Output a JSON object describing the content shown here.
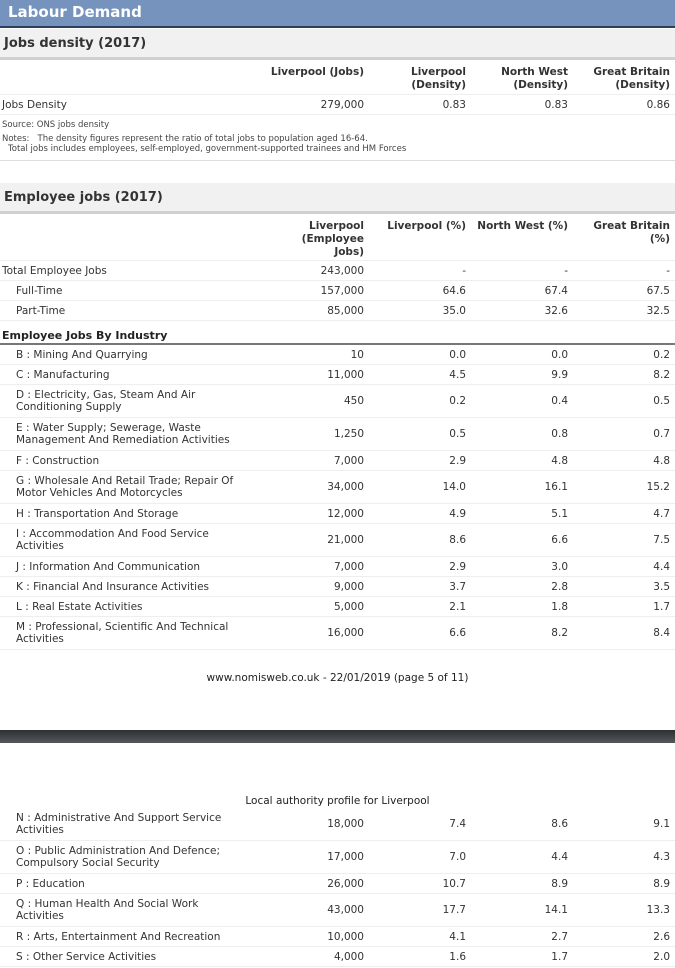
{
  "title": "Labour Demand",
  "density": {
    "heading": "Jobs density (2017)",
    "columns": [
      "Liverpool (Jobs)",
      "Liverpool (Density)",
      "North West (Density)",
      "Great Britain (Density)"
    ],
    "row": {
      "label": "Jobs Density",
      "values": [
        "279,000",
        "0.83",
        "0.83",
        "0.86"
      ]
    },
    "source": "Source: ONS jobs density",
    "notes": "Notes:   The density figures represent the ratio of total jobs to population aged 16-64.",
    "notes2": "Total jobs includes employees, self-employed, government-supported trainees and HM Forces"
  },
  "employee": {
    "heading": "Employee jobs (2017)",
    "columns": [
      "Liverpool (Employee Jobs)",
      "Liverpool (%)",
      "North West (%)",
      "Great Britain (%)"
    ],
    "summary": [
      {
        "label": "Total Employee Jobs",
        "values": [
          "243,000",
          "-",
          "-",
          "-"
        ],
        "indent": false
      },
      {
        "label": "Full-Time",
        "values": [
          "157,000",
          "64.6",
          "67.4",
          "67.5"
        ],
        "indent": true
      },
      {
        "label": "Part-Time",
        "values": [
          "85,000",
          "35.0",
          "32.6",
          "32.5"
        ],
        "indent": true
      }
    ],
    "category": "Employee Jobs By Industry",
    "industries": [
      {
        "label": "B : Mining And Quarrying",
        "values": [
          "10",
          "0.0",
          "0.0",
          "0.2"
        ]
      },
      {
        "label": "C : Manufacturing",
        "values": [
          "11,000",
          "4.5",
          "9.9",
          "8.2"
        ]
      },
      {
        "label": "D : Electricity, Gas, Steam And Air Conditioning Supply",
        "values": [
          "450",
          "0.2",
          "0.4",
          "0.5"
        ]
      },
      {
        "label": "E : Water Supply; Sewerage, Waste Management And Remediation Activities",
        "values": [
          "1,250",
          "0.5",
          "0.8",
          "0.7"
        ]
      },
      {
        "label": "F : Construction",
        "values": [
          "7,000",
          "2.9",
          "4.8",
          "4.8"
        ]
      },
      {
        "label": "G : Wholesale And Retail Trade; Repair Of Motor Vehicles And Motorcycles",
        "values": [
          "34,000",
          "14.0",
          "16.1",
          "15.2"
        ]
      },
      {
        "label": "H : Transportation And Storage",
        "values": [
          "12,000",
          "4.9",
          "5.1",
          "4.7"
        ]
      },
      {
        "label": "I : Accommodation And Food Service Activities",
        "values": [
          "21,000",
          "8.6",
          "6.6",
          "7.5"
        ]
      },
      {
        "label": "J : Information And Communication",
        "values": [
          "7,000",
          "2.9",
          "3.0",
          "4.4"
        ]
      },
      {
        "label": "K : Financial And Insurance Activities",
        "values": [
          "9,000",
          "3.7",
          "2.8",
          "3.5"
        ]
      },
      {
        "label": "L : Real Estate Activities",
        "values": [
          "5,000",
          "2.1",
          "1.8",
          "1.7"
        ]
      },
      {
        "label": "M : Professional, Scientific And Technical Activities",
        "values": [
          "16,000",
          "6.6",
          "8.2",
          "8.4"
        ]
      }
    ],
    "industries_p2": [
      {
        "label": "N : Administrative And Support Service Activities",
        "values": [
          "18,000",
          "7.4",
          "8.6",
          "9.1"
        ]
      },
      {
        "label": "O : Public Administration And Defence; Compulsory Social Security",
        "values": [
          "17,000",
          "7.0",
          "4.4",
          "4.3"
        ]
      },
      {
        "label": "P : Education",
        "values": [
          "26,000",
          "10.7",
          "8.9",
          "8.9"
        ]
      },
      {
        "label": "Q : Human Health And Social Work Activities",
        "values": [
          "43,000",
          "17.7",
          "14.1",
          "13.3"
        ]
      },
      {
        "label": "R : Arts, Entertainment And Recreation",
        "values": [
          "10,000",
          "4.1",
          "2.7",
          "2.6"
        ]
      },
      {
        "label": "S : Other Service Activities",
        "values": [
          "4,000",
          "1.6",
          "1.7",
          "2.0"
        ]
      }
    ]
  },
  "footer": "www.nomisweb.co.uk - 22/01/2019 (page 5 of 11)",
  "page2_header": "Local authority profile for Liverpool"
}
